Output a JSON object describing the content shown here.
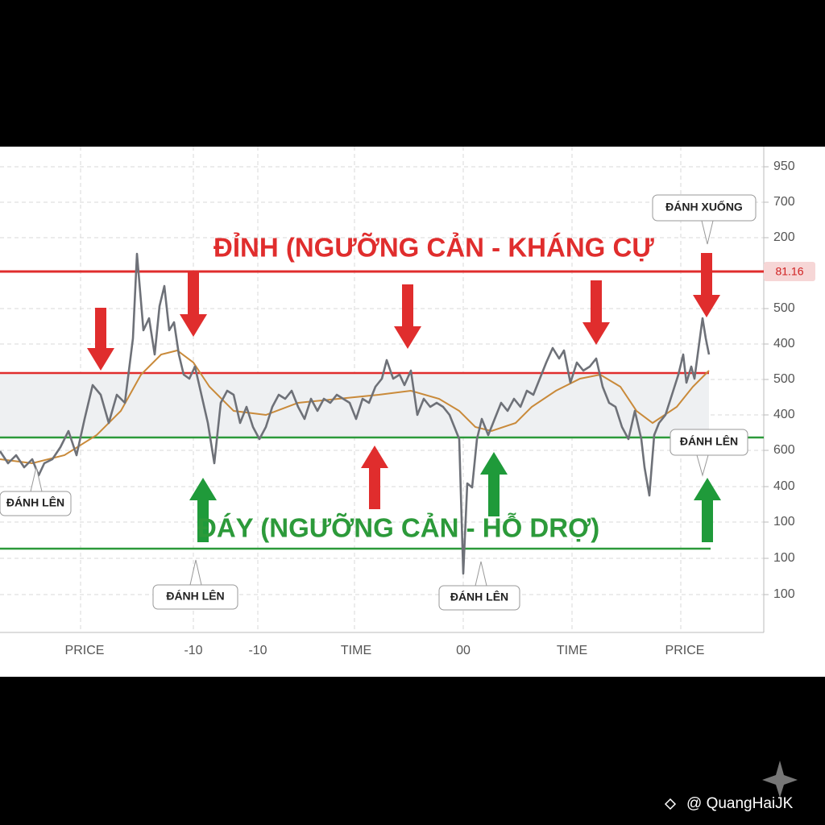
{
  "resistance_label": "ĐỈNH (NGƯỠNG CẢN - KHÁNG CỰ",
  "support_label": "ĐÁY (NGƯỠNG CẢN - HỖ DRỢ)",
  "y_axis_labels": [
    950,
    700,
    200,
    500,
    400,
    500,
    400,
    600,
    400,
    100,
    100,
    100
  ],
  "price_badge": "81.16",
  "x_axis_labels": [
    "PRICE",
    "-10",
    "-10",
    "TIME",
    "00",
    "TIME",
    "PRICE"
  ],
  "callouts": [
    "ĐÁNH XUỐNG",
    "ĐÁNH LÊN",
    "ĐÁNH LÊN",
    "ĐÁNH LÊN",
    "ĐÁNH LÊN"
  ],
  "watermark": "@ QuangHaiJK"
}
